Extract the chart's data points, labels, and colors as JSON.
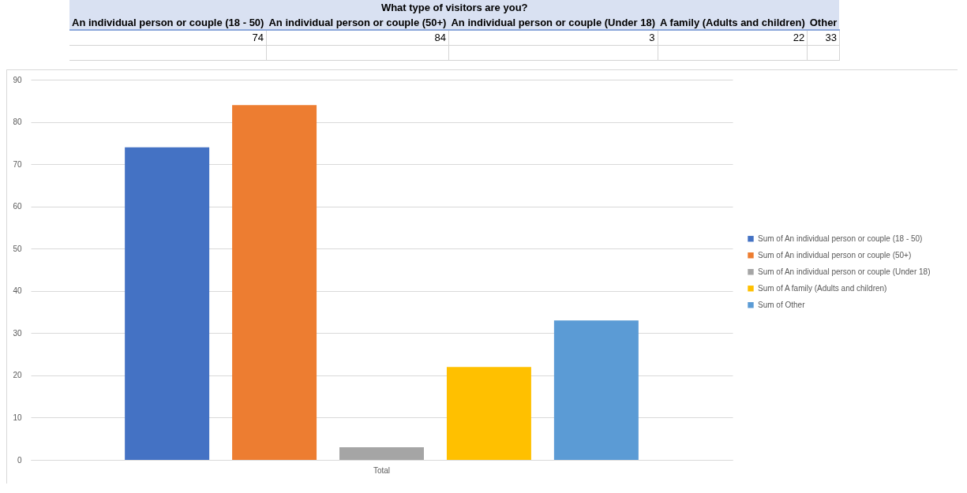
{
  "chart_data": [
    {
      "type": "other",
      "title": "What type of visitors are you?",
      "categories": [
        "An individual person or couple (18 - 50)",
        "An individual person or couple (50+)",
        "An individual person or couple (Under 18)",
        "A family (Adults and children)",
        "Other"
      ],
      "values": [
        74,
        84,
        3,
        22,
        33
      ],
      "data_labels": true
    },
    {
      "type": "bar",
      "categories": [
        "Total"
      ],
      "series": [
        {
          "name": "Sum of An individual person or couple (18 - 50)",
          "color": "#4472c4",
          "values": [
            74
          ]
        },
        {
          "name": "Sum of An individual person or couple (50+)",
          "color": "#ed7d31",
          "values": [
            84
          ]
        },
        {
          "name": "Sum of An individual person or couple (Under 18)",
          "color": "#a5a5a5",
          "values": [
            3
          ]
        },
        {
          "name": "Sum of A family (Adults and children)",
          "color": "#ffc000",
          "values": [
            22
          ]
        },
        {
          "name": "Sum of Other",
          "color": "#5b9bd5",
          "values": [
            33
          ]
        }
      ],
      "ylim": [
        0,
        90
      ],
      "yticks": [
        0,
        10,
        20,
        30,
        40,
        50,
        60,
        70,
        80,
        90
      ],
      "grid": "y",
      "legend": "right"
    }
  ]
}
